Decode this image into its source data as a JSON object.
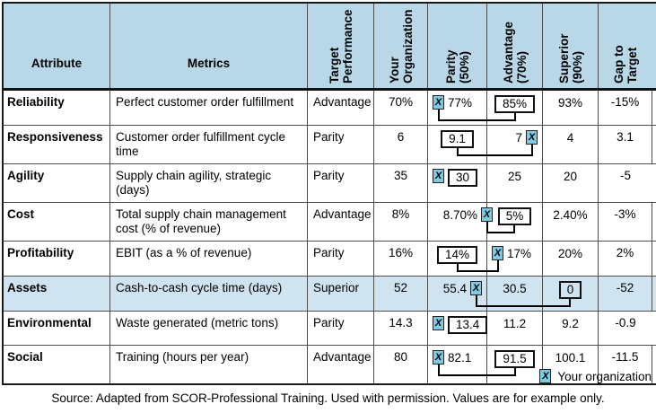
{
  "colors": {
    "header_bg": "#b8d8e8",
    "highlight_row_bg": "#cfe3f1",
    "marker_blue": "#7fc9e5",
    "grid_line": "#4d4d4d",
    "outer_border": "#1a1a1a"
  },
  "table": {
    "columns": [
      {
        "label": "Attribute",
        "rotated": false,
        "lines": [
          "Attribute"
        ]
      },
      {
        "label": "Metrics",
        "rotated": false,
        "lines": [
          "Metrics"
        ]
      },
      {
        "label": "Target Performance",
        "rotated": true,
        "lines": [
          "Target",
          "Performance"
        ]
      },
      {
        "label": "Your Organization",
        "rotated": true,
        "lines": [
          "Your",
          "Organization"
        ]
      },
      {
        "label": "Parity (50%)",
        "rotated": true,
        "lines": [
          "Parity",
          "(50%)"
        ]
      },
      {
        "label": "Advantage (70%)",
        "rotated": true,
        "lines": [
          "Advantage",
          "(70%)"
        ]
      },
      {
        "label": "Superior (90%)",
        "rotated": true,
        "lines": [
          "Superior",
          "(90%)"
        ]
      },
      {
        "label": "Gap to Target",
        "rotated": true,
        "lines": [
          "Gap to",
          "Target"
        ]
      }
    ],
    "rows": [
      {
        "attribute": "Reliability",
        "metric": "Perfect customer order fulfillment",
        "target": "Advantage",
        "your_org": "70%",
        "parity": {
          "align": "left",
          "tokens": [
            {
              "type": "x"
            },
            {
              "type": "text",
              "value": "77%"
            }
          ]
        },
        "advantage": {
          "align": "center",
          "tokens": [
            {
              "type": "box",
              "value": "85%"
            }
          ]
        },
        "superior": {
          "align": "center",
          "tokens": [
            {
              "type": "text",
              "value": "93%"
            }
          ]
        },
        "gap": "-15%",
        "highlight": false,
        "connector": true
      },
      {
        "attribute": "Responsiveness",
        "metric": "Customer order fulfillment cycle time",
        "target": "Parity",
        "your_org": "6",
        "parity": {
          "align": "center",
          "tokens": [
            {
              "type": "box",
              "value": "9.1"
            }
          ]
        },
        "advantage": {
          "align": "right",
          "tokens": [
            {
              "type": "text",
              "value": "7"
            },
            {
              "type": "x"
            }
          ]
        },
        "superior": {
          "align": "center",
          "tokens": [
            {
              "type": "text",
              "value": "4"
            }
          ]
        },
        "gap": "3.1",
        "highlight": false,
        "connector": true
      },
      {
        "attribute": "Agility",
        "metric": "Supply chain agility, strategic (days)",
        "target": "Parity",
        "your_org": "35",
        "parity": {
          "align": "left",
          "tokens": [
            {
              "type": "x"
            },
            {
              "type": "box",
              "value": "30"
            }
          ]
        },
        "advantage": {
          "align": "center",
          "tokens": [
            {
              "type": "text",
              "value": "25"
            }
          ]
        },
        "superior": {
          "align": "center",
          "tokens": [
            {
              "type": "text",
              "value": "20"
            }
          ]
        },
        "gap": "-5",
        "highlight": false,
        "connector": false
      },
      {
        "attribute": "Cost",
        "metric": "Total supply chain management cost (% of revenue)",
        "target": "Advantage",
        "your_org": "8%",
        "parity": {
          "align": "right",
          "bleed": true,
          "tokens": [
            {
              "type": "text",
              "value": "8.70%"
            },
            {
              "type": "x"
            }
          ]
        },
        "advantage": {
          "align": "center",
          "tokens": [
            {
              "type": "box",
              "value": "5%"
            }
          ]
        },
        "superior": {
          "align": "center",
          "tokens": [
            {
              "type": "text",
              "value": "2.40%"
            }
          ]
        },
        "gap": "-3%",
        "highlight": false,
        "connector": true
      },
      {
        "attribute": "Profitability",
        "metric": "EBIT (as a % of revenue)",
        "target": "Parity",
        "your_org": "16%",
        "parity": {
          "align": "center",
          "tokens": [
            {
              "type": "box",
              "value": "14%"
            }
          ]
        },
        "advantage": {
          "align": "left",
          "tokens": [
            {
              "type": "x"
            },
            {
              "type": "text",
              "value": "17%"
            }
          ]
        },
        "superior": {
          "align": "center",
          "tokens": [
            {
              "type": "text",
              "value": "20%"
            }
          ]
        },
        "gap": "2%",
        "highlight": false,
        "connector": true
      },
      {
        "attribute": "Assets",
        "metric": "Cash-to-cash cycle time (days)",
        "target": "Superior",
        "your_org": "52",
        "parity": {
          "align": "right",
          "tokens": [
            {
              "type": "text",
              "value": "55.4"
            },
            {
              "type": "x"
            }
          ]
        },
        "advantage": {
          "align": "center",
          "tokens": [
            {
              "type": "text",
              "value": "30.5"
            }
          ]
        },
        "superior": {
          "align": "center",
          "tokens": [
            {
              "type": "box",
              "value": "0"
            }
          ]
        },
        "gap": "-52",
        "highlight": true,
        "connector": true
      },
      {
        "attribute": "Environmental",
        "metric": "Waste generated (metric tons)",
        "target": "Parity",
        "your_org": "14.3",
        "parity": {
          "align": "left",
          "tokens": [
            {
              "type": "x"
            },
            {
              "type": "box",
              "value": "13.4"
            }
          ]
        },
        "advantage": {
          "align": "center",
          "tokens": [
            {
              "type": "text",
              "value": "11.2"
            }
          ]
        },
        "superior": {
          "align": "center",
          "tokens": [
            {
              "type": "text",
              "value": "9.2"
            }
          ]
        },
        "gap": "-0.9",
        "highlight": false,
        "connector": false
      },
      {
        "attribute": "Social",
        "metric": "Training (hours per year)",
        "target": "Advantage",
        "your_org": "80",
        "parity": {
          "align": "left",
          "tokens": [
            {
              "type": "x"
            },
            {
              "type": "text",
              "value": "82.1"
            }
          ]
        },
        "advantage": {
          "align": "center",
          "tokens": [
            {
              "type": "box",
              "value": "91.5"
            }
          ]
        },
        "superior": {
          "align": "center",
          "tokens": [
            {
              "type": "text",
              "value": "100.1"
            }
          ]
        },
        "gap": "-11.5",
        "highlight": false,
        "connector": true
      }
    ]
  },
  "legend": {
    "marker": "X",
    "label": "Your organization"
  },
  "footer": "Source: Adapted from SCOR-Professional Training. Used with permission. Values are for example only."
}
